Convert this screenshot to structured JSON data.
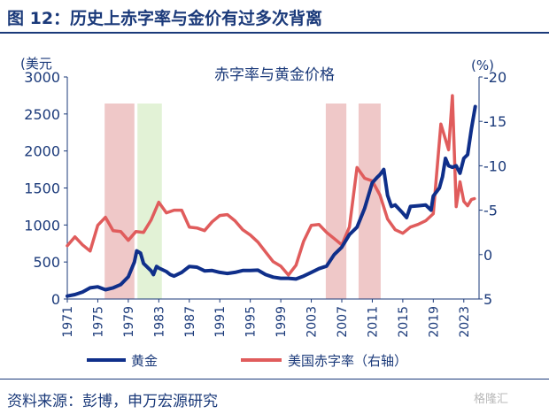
{
  "figure": {
    "title": "图 12：历史上赤字率与金价有过多次背离",
    "source": "资料来源：彭博，申万宏源研究",
    "watermark": "格隆汇"
  },
  "chart_data": {
    "type": "line",
    "title": "赤字率与黄金价格",
    "left_axis": {
      "unit_label": "(美元",
      "range": [
        0,
        3000
      ],
      "ticks": [
        "0",
        "500",
        "1000",
        "1500",
        "2000",
        "2500",
        "3000"
      ]
    },
    "right_axis": {
      "unit_label": "(%)",
      "inverted": true,
      "range": [
        5,
        -20
      ],
      "ticks": [
        "5",
        "0",
        "-5",
        "-10",
        "-15",
        "-20"
      ]
    },
    "x_axis": {
      "range": [
        1971,
        2025
      ],
      "ticks": [
        "1971",
        "1975",
        "1979",
        "1983",
        "1987",
        "1991",
        "1995",
        "1999",
        "2003",
        "2007",
        "2011",
        "2015",
        "2019",
        "2023"
      ]
    },
    "legend": {
      "position": "bottom"
    },
    "shaded_periods": [
      {
        "start": 1975.9,
        "end": 1979.8,
        "color": "#efc8c8"
      },
      {
        "start": 1980.2,
        "end": 1983.4,
        "color": "#e2f2d6"
      },
      {
        "start": 2004.9,
        "end": 2007.6,
        "color": "#efc8c8"
      },
      {
        "start": 2009.2,
        "end": 2012.1,
        "color": "#efc8c8"
      }
    ],
    "series": [
      {
        "name": "黄金",
        "axis": "left",
        "color": "#0f2f8a",
        "points": [
          [
            1971,
            40
          ],
          [
            1972,
            60
          ],
          [
            1973,
            95
          ],
          [
            1974,
            150
          ],
          [
            1975,
            165
          ],
          [
            1976,
            125
          ],
          [
            1977,
            150
          ],
          [
            1978,
            195
          ],
          [
            1979,
            300
          ],
          [
            1979.8,
            500
          ],
          [
            1980.1,
            650
          ],
          [
            1980.6,
            620
          ],
          [
            1981,
            480
          ],
          [
            1982,
            380
          ],
          [
            1982.3,
            330
          ],
          [
            1982.7,
            440
          ],
          [
            1983,
            420
          ],
          [
            1984,
            370
          ],
          [
            1984.5,
            330
          ],
          [
            1985,
            310
          ],
          [
            1986,
            360
          ],
          [
            1987,
            440
          ],
          [
            1988,
            430
          ],
          [
            1989,
            380
          ],
          [
            1990,
            385
          ],
          [
            1991,
            360
          ],
          [
            1992,
            345
          ],
          [
            1993,
            360
          ],
          [
            1994,
            385
          ],
          [
            1995,
            385
          ],
          [
            1996,
            390
          ],
          [
            1997,
            330
          ],
          [
            1998,
            295
          ],
          [
            1999,
            280
          ],
          [
            2000,
            280
          ],
          [
            2001,
            270
          ],
          [
            2002,
            310
          ],
          [
            2003,
            360
          ],
          [
            2004,
            410
          ],
          [
            2005,
            445
          ],
          [
            2006,
            600
          ],
          [
            2007,
            700
          ],
          [
            2008,
            870
          ],
          [
            2009,
            970
          ],
          [
            2010,
            1225
          ],
          [
            2011,
            1570
          ],
          [
            2011.7,
            1650
          ],
          [
            2012,
            1680
          ],
          [
            2012.5,
            1750
          ],
          [
            2013,
            1400
          ],
          [
            2013.5,
            1250
          ],
          [
            2014,
            1270
          ],
          [
            2015,
            1160
          ],
          [
            2015.5,
            1100
          ],
          [
            2016,
            1250
          ],
          [
            2017,
            1260
          ],
          [
            2018,
            1270
          ],
          [
            2018.7,
            1200
          ],
          [
            2019,
            1390
          ],
          [
            2019.8,
            1500
          ],
          [
            2020.2,
            1650
          ],
          [
            2020.6,
            1900
          ],
          [
            2021,
            1800
          ],
          [
            2021.5,
            1780
          ],
          [
            2022,
            1800
          ],
          [
            2022.5,
            1700
          ],
          [
            2023,
            1900
          ],
          [
            2023.5,
            1950
          ],
          [
            2024,
            2300
          ],
          [
            2024.5,
            2600
          ]
        ]
      },
      {
        "name": "美国赤字率（右轴）",
        "axis": "right",
        "color": "#e05c5c",
        "points": [
          [
            1971,
            -1
          ],
          [
            1972,
            -2
          ],
          [
            1973,
            -1.1
          ],
          [
            1974,
            -0.4
          ],
          [
            1975,
            -3.3
          ],
          [
            1976,
            -4.2
          ],
          [
            1977,
            -2.7
          ],
          [
            1978,
            -2.6
          ],
          [
            1979,
            -1.6
          ],
          [
            1980,
            -2.6
          ],
          [
            1981,
            -2.5
          ],
          [
            1982,
            -3.9
          ],
          [
            1983,
            -5.9
          ],
          [
            1984,
            -4.7
          ],
          [
            1985,
            -5
          ],
          [
            1986,
            -5
          ],
          [
            1987,
            -3.1
          ],
          [
            1988,
            -3
          ],
          [
            1989,
            -2.7
          ],
          [
            1990,
            -3.7
          ],
          [
            1991,
            -4.4
          ],
          [
            1992,
            -4.5
          ],
          [
            1993,
            -3.8
          ],
          [
            1994,
            -2.8
          ],
          [
            1995,
            -2.2
          ],
          [
            1996,
            -1.4
          ],
          [
            1997,
            -0.3
          ],
          [
            1998,
            0.8
          ],
          [
            1999,
            1.3
          ],
          [
            2000,
            2.3
          ],
          [
            2001,
            1.2
          ],
          [
            2002,
            -1.5
          ],
          [
            2003,
            -3.3
          ],
          [
            2004,
            -3.4
          ],
          [
            2005,
            -2.5
          ],
          [
            2006,
            -1.8
          ],
          [
            2007,
            -1.1
          ],
          [
            2008,
            -3.1
          ],
          [
            2009,
            -9.8
          ],
          [
            2010,
            -8.6
          ],
          [
            2011,
            -8.3
          ],
          [
            2012,
            -6.7
          ],
          [
            2013,
            -4
          ],
          [
            2014,
            -2.8
          ],
          [
            2015,
            -2.4
          ],
          [
            2016,
            -3.1
          ],
          [
            2017,
            -3.4
          ],
          [
            2018,
            -3.8
          ],
          [
            2019,
            -4.6
          ],
          [
            2020,
            -14.7
          ],
          [
            2021,
            -11.8
          ],
          [
            2021.5,
            -17.9
          ],
          [
            2022,
            -5.4
          ],
          [
            2022.5,
            -8.2
          ],
          [
            2023,
            -6
          ],
          [
            2023.5,
            -5.5
          ],
          [
            2024,
            -6.2
          ],
          [
            2024.4,
            -6.3
          ]
        ]
      }
    ]
  }
}
